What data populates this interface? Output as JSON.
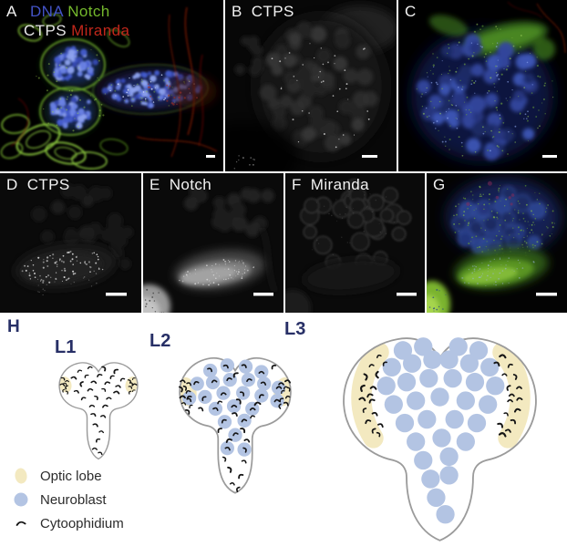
{
  "panels": {
    "a": {
      "label": "A",
      "dna": "DNA",
      "notch": "Notch",
      "ctps": "CTPS",
      "miranda": "Miranda"
    },
    "b": {
      "label": "B",
      "marker": "CTPS"
    },
    "c": {
      "label": "C"
    },
    "d": {
      "label": "D",
      "marker": "CTPS"
    },
    "e": {
      "label": "E",
      "marker": "Notch"
    },
    "f": {
      "label": "F",
      "marker": "Miranda"
    },
    "g": {
      "label": "G"
    }
  },
  "schematic": {
    "label": "H",
    "stages": [
      {
        "id": "l1",
        "label": "L1",
        "neuroblasts": false,
        "neuroblast_cytoophidia": false,
        "scattered_cytoophidia": true,
        "optic_lobe_shape": "oval"
      },
      {
        "id": "l2",
        "label": "L2",
        "neuroblasts": true,
        "neuroblast_cytoophidia": true,
        "scattered_cytoophidia": true,
        "optic_lobe_shape": "oval"
      },
      {
        "id": "l3",
        "label": "L3",
        "neuroblasts": true,
        "neuroblast_cytoophidia": false,
        "scattered_cytoophidia": false,
        "optic_lobe_shape": "crescent"
      }
    ],
    "legend": [
      {
        "icon": "optic-lobe-icon",
        "label": "Optic lobe"
      },
      {
        "icon": "neuroblast-icon",
        "label": "Neuroblast"
      },
      {
        "icon": "cytoophidium-icon",
        "label": "Cytoophidium"
      }
    ]
  },
  "colors": {
    "dna_blue": "#4353c6",
    "notch_green": "#74b82c",
    "ctps_white": "#e6e6e6",
    "miranda_red": "#c1271b",
    "panel_label_white": "#f2f2f2",
    "stage_label_navy": "#272f66",
    "optic_lobe_fill": "#f3e9c0",
    "neuroblast_fill": "#b3c4e3",
    "cytoophidium_black": "#141414",
    "brain_outline_gray": "#9b9b9b",
    "legend_text": "#2b2b2b",
    "figure_background": "#ffffff",
    "micrograph_background": "#000000"
  }
}
